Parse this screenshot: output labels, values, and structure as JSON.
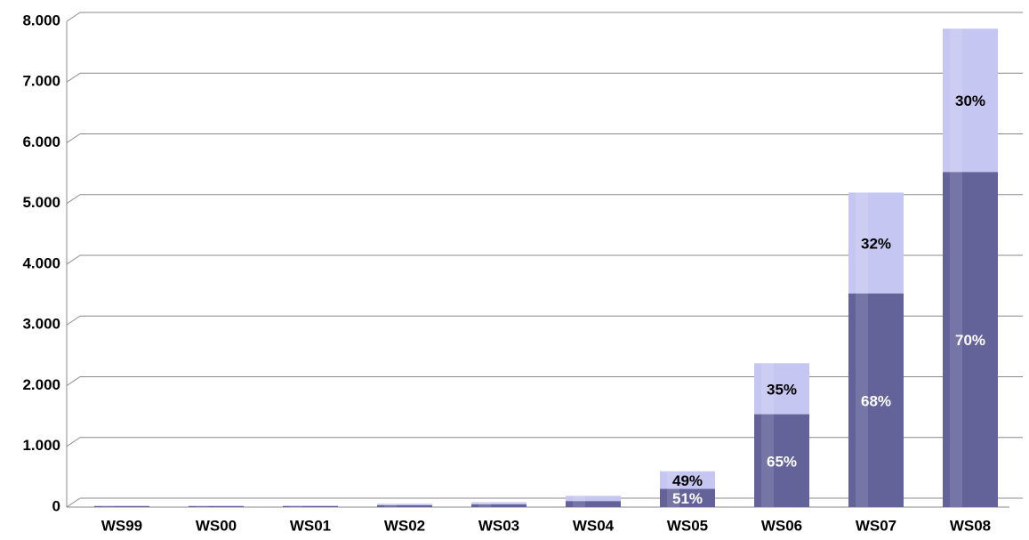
{
  "chart_data": {
    "type": "stacked_bar",
    "categories": [
      "WS99",
      "WS00",
      "WS01",
      "WS02",
      "WS03",
      "WS04",
      "WS05",
      "WS06",
      "WS07",
      "WS08"
    ],
    "series": [
      {
        "color": "#63639a",
        "values": [
          15,
          15,
          15,
          30,
          45,
          100,
          300,
          1530,
          3520,
          5520
        ],
        "percent_labels": [
          null,
          null,
          null,
          null,
          null,
          null,
          "51%",
          "65%",
          "68%",
          "70%"
        ]
      },
      {
        "color": "#c6c6f2",
        "values": [
          10,
          10,
          12,
          25,
          35,
          85,
          290,
          840,
          1660,
          2360
        ],
        "percent_labels": [
          null,
          null,
          null,
          null,
          null,
          null,
          "49%",
          "35%",
          "32%",
          "30%"
        ]
      }
    ],
    "ylim": [
      0,
      8000
    ],
    "yticks": [
      0,
      {
        "value": 1000,
        "label": "1.000"
      },
      {
        "value": 2000,
        "label": "2.000"
      },
      {
        "value": 3000,
        "label": "3.000"
      },
      {
        "value": 4000,
        "label": "4.000"
      },
      {
        "value": 5000,
        "label": "5.000"
      },
      {
        "value": 6000,
        "label": "6.000"
      },
      {
        "value": 7000,
        "label": "7.000"
      },
      {
        "value": 8000,
        "label": "8.000"
      }
    ],
    "grid": true
  }
}
